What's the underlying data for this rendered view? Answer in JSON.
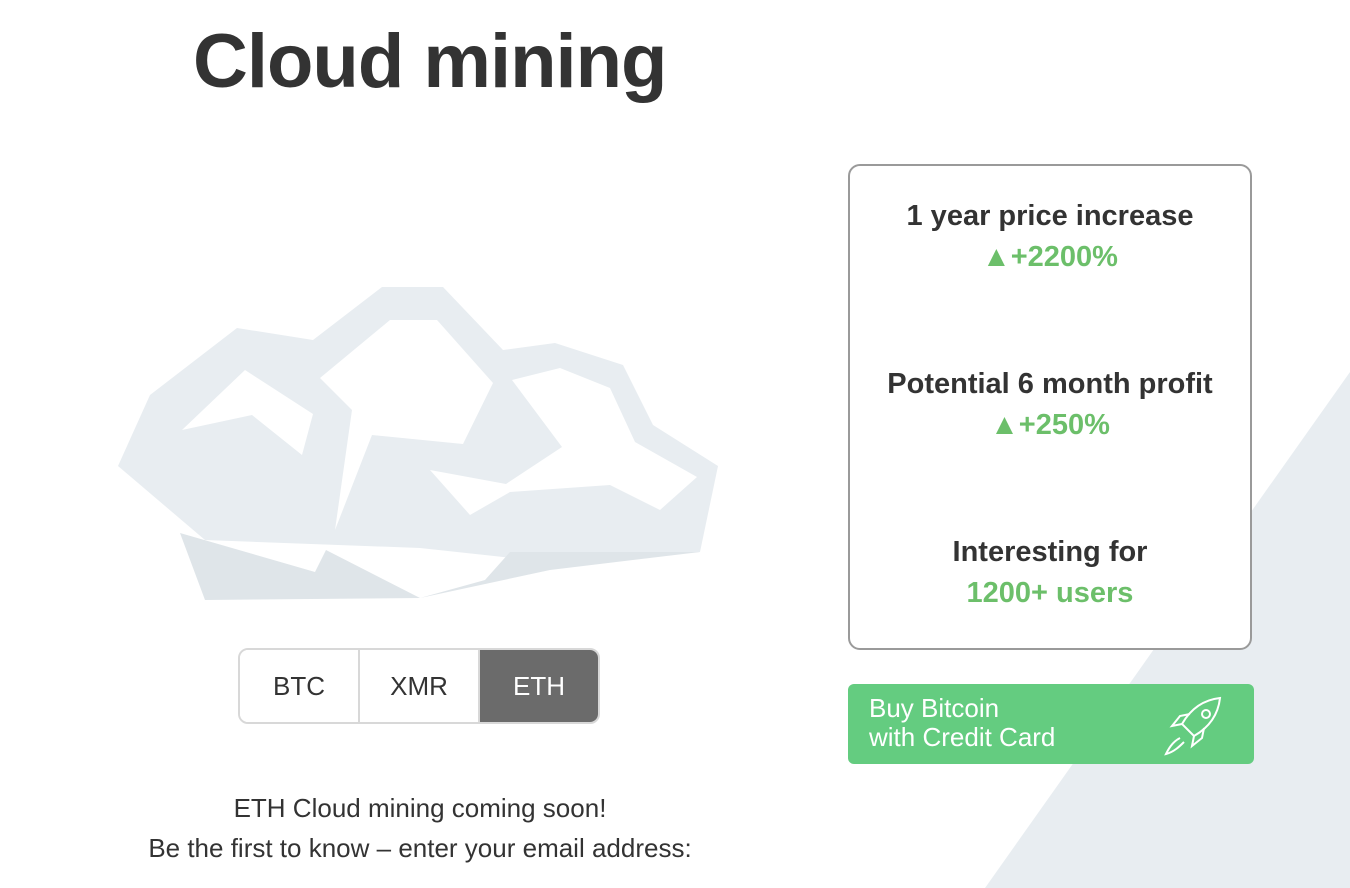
{
  "title": "Cloud mining",
  "stats": [
    {
      "label": "1 year price increase",
      "value": "▲+2200%"
    },
    {
      "label": "Potential 6 month profit",
      "value": "▲+250%"
    },
    {
      "label": "Interesting for",
      "value": "1200+ users"
    }
  ],
  "tabs": [
    {
      "label": "BTC"
    },
    {
      "label": "XMR"
    },
    {
      "label": "ETH",
      "active": true
    }
  ],
  "buy_button": {
    "line1": "Buy Bitcoin",
    "line2": "with Credit Card",
    "icon": "rocket-icon"
  },
  "message": {
    "line1": "ETH Cloud mining coming soon!",
    "line2": "Be the first to know – enter your email address:"
  },
  "colors": {
    "accent_green": "#6cbf6a",
    "button_green": "#64cc80",
    "active_tab": "#6b6b6b"
  }
}
